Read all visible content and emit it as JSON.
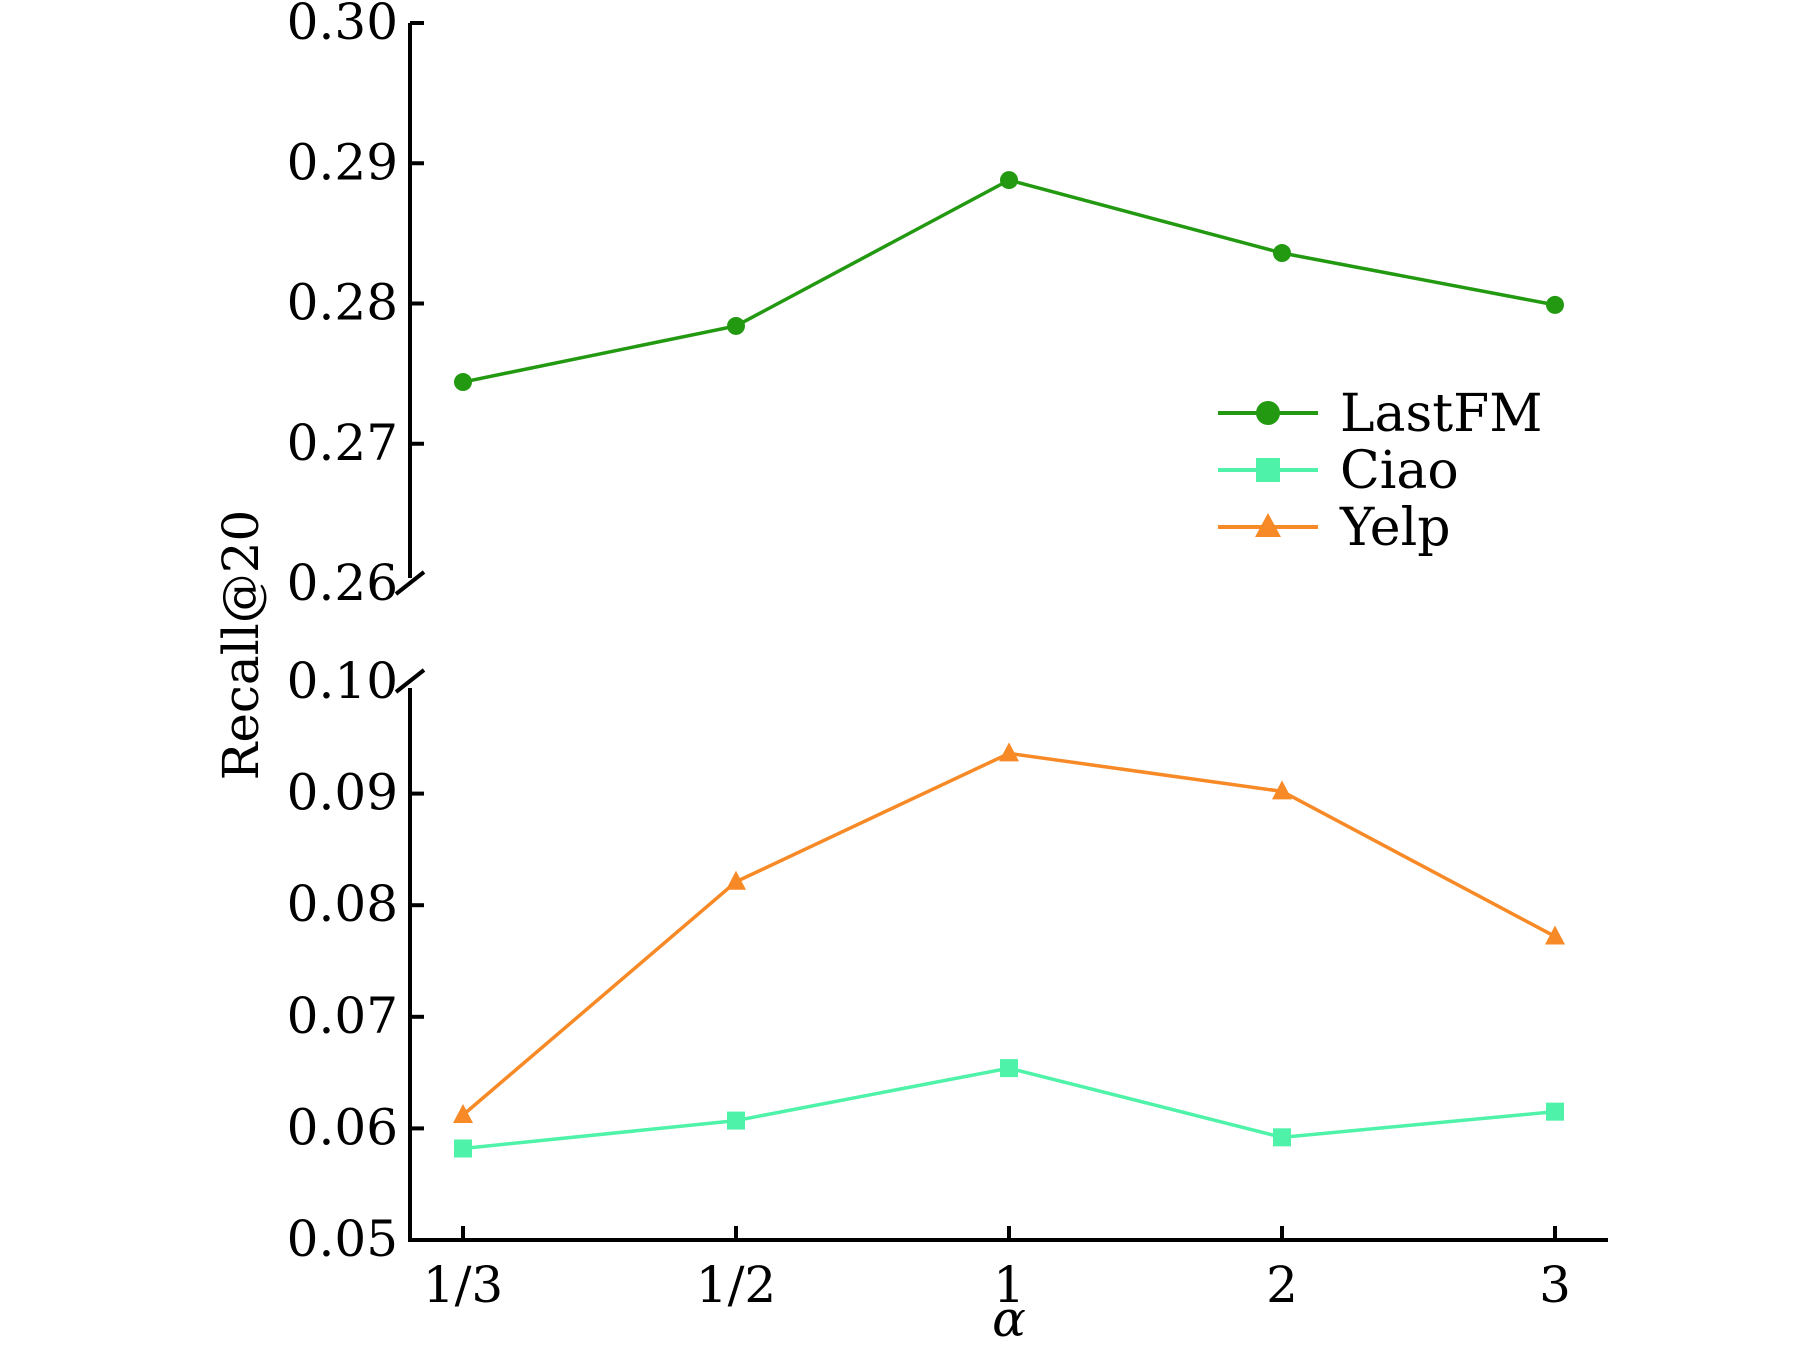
{
  "chart_data": {
    "type": "line",
    "xlabel": "α",
    "ylabel": "Recall@20",
    "categories": [
      "1/3",
      "1/2",
      "1",
      "2",
      "3"
    ],
    "y_axis": {
      "broken": true,
      "upper_range": [
        0.26,
        0.3
      ],
      "upper_ticks": [
        "0.30",
        "0.29",
        "0.28",
        "0.27",
        "0.26"
      ],
      "lower_range": [
        0.05,
        0.1
      ],
      "lower_ticks": [
        "0.10",
        "0.09",
        "0.08",
        "0.07",
        "0.06",
        "0.05"
      ]
    },
    "grid": false,
    "legend_position": "right",
    "series": [
      {
        "name": "LastFM",
        "color": "#229911",
        "marker": "circle",
        "segment": "upper",
        "values": [
          0.2744,
          0.2784,
          0.2888,
          0.2836,
          0.2799
        ]
      },
      {
        "name": "Ciao",
        "color": "#4ef2a8",
        "marker": "square",
        "segment": "lower",
        "values": [
          0.0582,
          0.0607,
          0.0654,
          0.0592,
          0.0615
        ]
      },
      {
        "name": "Yelp",
        "color": "#f78a26",
        "marker": "triangle",
        "segment": "lower",
        "values": [
          0.0612,
          0.0821,
          0.0936,
          0.0902,
          0.0772
        ]
      }
    ]
  }
}
